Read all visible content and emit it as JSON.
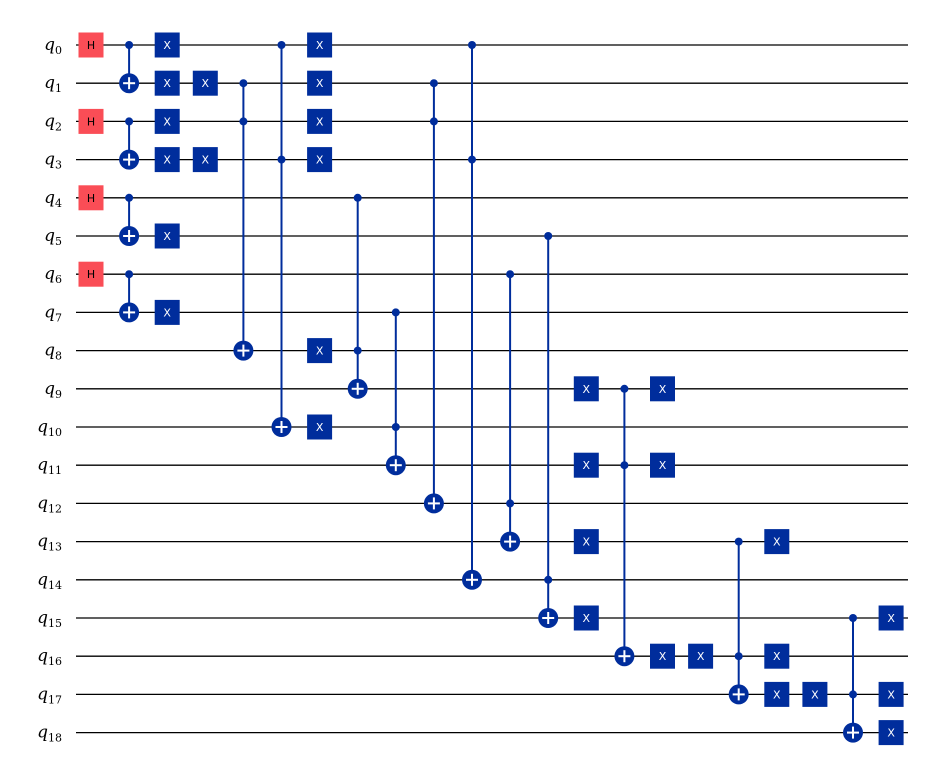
{
  "colors": {
    "wire": "#000000",
    "x_gate": "#002D9C",
    "h_gate": "#FA4D56",
    "control": "#002D9C",
    "x_text": "#ffffff",
    "h_text": "#000000"
  },
  "qubits": [
    {
      "name": "q",
      "index": "0"
    },
    {
      "name": "q",
      "index": "1"
    },
    {
      "name": "q",
      "index": "2"
    },
    {
      "name": "q",
      "index": "3"
    },
    {
      "name": "q",
      "index": "4"
    },
    {
      "name": "q",
      "index": "5"
    },
    {
      "name": "q",
      "index": "6"
    },
    {
      "name": "q",
      "index": "7"
    },
    {
      "name": "q",
      "index": "8"
    },
    {
      "name": "q",
      "index": "9"
    },
    {
      "name": "q",
      "index": "10"
    },
    {
      "name": "q",
      "index": "11"
    },
    {
      "name": "q",
      "index": "12"
    },
    {
      "name": "q",
      "index": "13"
    },
    {
      "name": "q",
      "index": "14"
    },
    {
      "name": "q",
      "index": "15"
    },
    {
      "name": "q",
      "index": "16"
    },
    {
      "name": "q",
      "index": "17"
    },
    {
      "name": "q",
      "index": "18"
    }
  ],
  "gates": [
    {
      "type": "H",
      "label": "H",
      "qubit": 0,
      "col": 0
    },
    {
      "type": "H",
      "label": "H",
      "qubit": 2,
      "col": 0
    },
    {
      "type": "H",
      "label": "H",
      "qubit": 4,
      "col": 0
    },
    {
      "type": "H",
      "label": "H",
      "qubit": 6,
      "col": 0
    },
    {
      "type": "CX",
      "controls": [
        0
      ],
      "target": 1,
      "col": 1
    },
    {
      "type": "CX",
      "controls": [
        2
      ],
      "target": 3,
      "col": 1
    },
    {
      "type": "CX",
      "controls": [
        4
      ],
      "target": 5,
      "col": 1
    },
    {
      "type": "CX",
      "controls": [
        6
      ],
      "target": 7,
      "col": 1
    },
    {
      "type": "X",
      "label": "X",
      "qubit": 0,
      "col": 2
    },
    {
      "type": "X",
      "label": "X",
      "qubit": 1,
      "col": 2
    },
    {
      "type": "X",
      "label": "X",
      "qubit": 2,
      "col": 2
    },
    {
      "type": "X",
      "label": "X",
      "qubit": 3,
      "col": 2
    },
    {
      "type": "X",
      "label": "X",
      "qubit": 5,
      "col": 2
    },
    {
      "type": "X",
      "label": "X",
      "qubit": 7,
      "col": 2
    },
    {
      "type": "X",
      "label": "X",
      "qubit": 1,
      "col": 3
    },
    {
      "type": "X",
      "label": "X",
      "qubit": 3,
      "col": 3
    },
    {
      "type": "CCX",
      "controls": [
        1,
        2
      ],
      "target": 8,
      "col": 4
    },
    {
      "type": "CCX",
      "controls": [
        0,
        3
      ],
      "target": 10,
      "col": 5
    },
    {
      "type": "X",
      "label": "X",
      "qubit": 0,
      "col": 6
    },
    {
      "type": "X",
      "label": "X",
      "qubit": 1,
      "col": 6
    },
    {
      "type": "X",
      "label": "X",
      "qubit": 2,
      "col": 6
    },
    {
      "type": "X",
      "label": "X",
      "qubit": 3,
      "col": 6
    },
    {
      "type": "X",
      "label": "X",
      "qubit": 8,
      "col": 6
    },
    {
      "type": "X",
      "label": "X",
      "qubit": 10,
      "col": 6
    },
    {
      "type": "CCX",
      "controls": [
        4,
        8
      ],
      "target": 9,
      "col": 7
    },
    {
      "type": "CCX",
      "controls": [
        7,
        10
      ],
      "target": 11,
      "col": 8
    },
    {
      "type": "CCX",
      "controls": [
        1,
        2
      ],
      "target": 12,
      "col": 9
    },
    {
      "type": "CCX",
      "controls": [
        0,
        3
      ],
      "target": 14,
      "col": 10
    },
    {
      "type": "CCX",
      "controls": [
        6,
        12
      ],
      "target": 13,
      "col": 11
    },
    {
      "type": "CCX",
      "controls": [
        5,
        14
      ],
      "target": 15,
      "col": 12
    },
    {
      "type": "X",
      "label": "X",
      "qubit": 9,
      "col": 13
    },
    {
      "type": "X",
      "label": "X",
      "qubit": 11,
      "col": 13
    },
    {
      "type": "X",
      "label": "X",
      "qubit": 13,
      "col": 13
    },
    {
      "type": "X",
      "label": "X",
      "qubit": 15,
      "col": 13
    },
    {
      "type": "CCX",
      "controls": [
        9,
        11
      ],
      "target": 16,
      "col": 14
    },
    {
      "type": "X",
      "label": "X",
      "qubit": 9,
      "col": 15
    },
    {
      "type": "X",
      "label": "X",
      "qubit": 11,
      "col": 15
    },
    {
      "type": "X",
      "label": "X",
      "qubit": 16,
      "col": 15
    },
    {
      "type": "X",
      "label": "X",
      "qubit": 16,
      "col": 16
    },
    {
      "type": "CCX",
      "controls": [
        13,
        16
      ],
      "target": 17,
      "col": 17
    },
    {
      "type": "X",
      "label": "X",
      "qubit": 13,
      "col": 18
    },
    {
      "type": "X",
      "label": "X",
      "qubit": 16,
      "col": 18
    },
    {
      "type": "X",
      "label": "X",
      "qubit": 17,
      "col": 18
    },
    {
      "type": "X",
      "label": "X",
      "qubit": 17,
      "col": 19
    },
    {
      "type": "CCX",
      "controls": [
        15,
        17
      ],
      "target": 18,
      "col": 20
    },
    {
      "type": "X",
      "label": "X",
      "qubit": 15,
      "col": 21
    },
    {
      "type": "X",
      "label": "X",
      "qubit": 17,
      "col": 21
    },
    {
      "type": "X",
      "label": "X",
      "qubit": 18,
      "col": 21
    }
  ]
}
